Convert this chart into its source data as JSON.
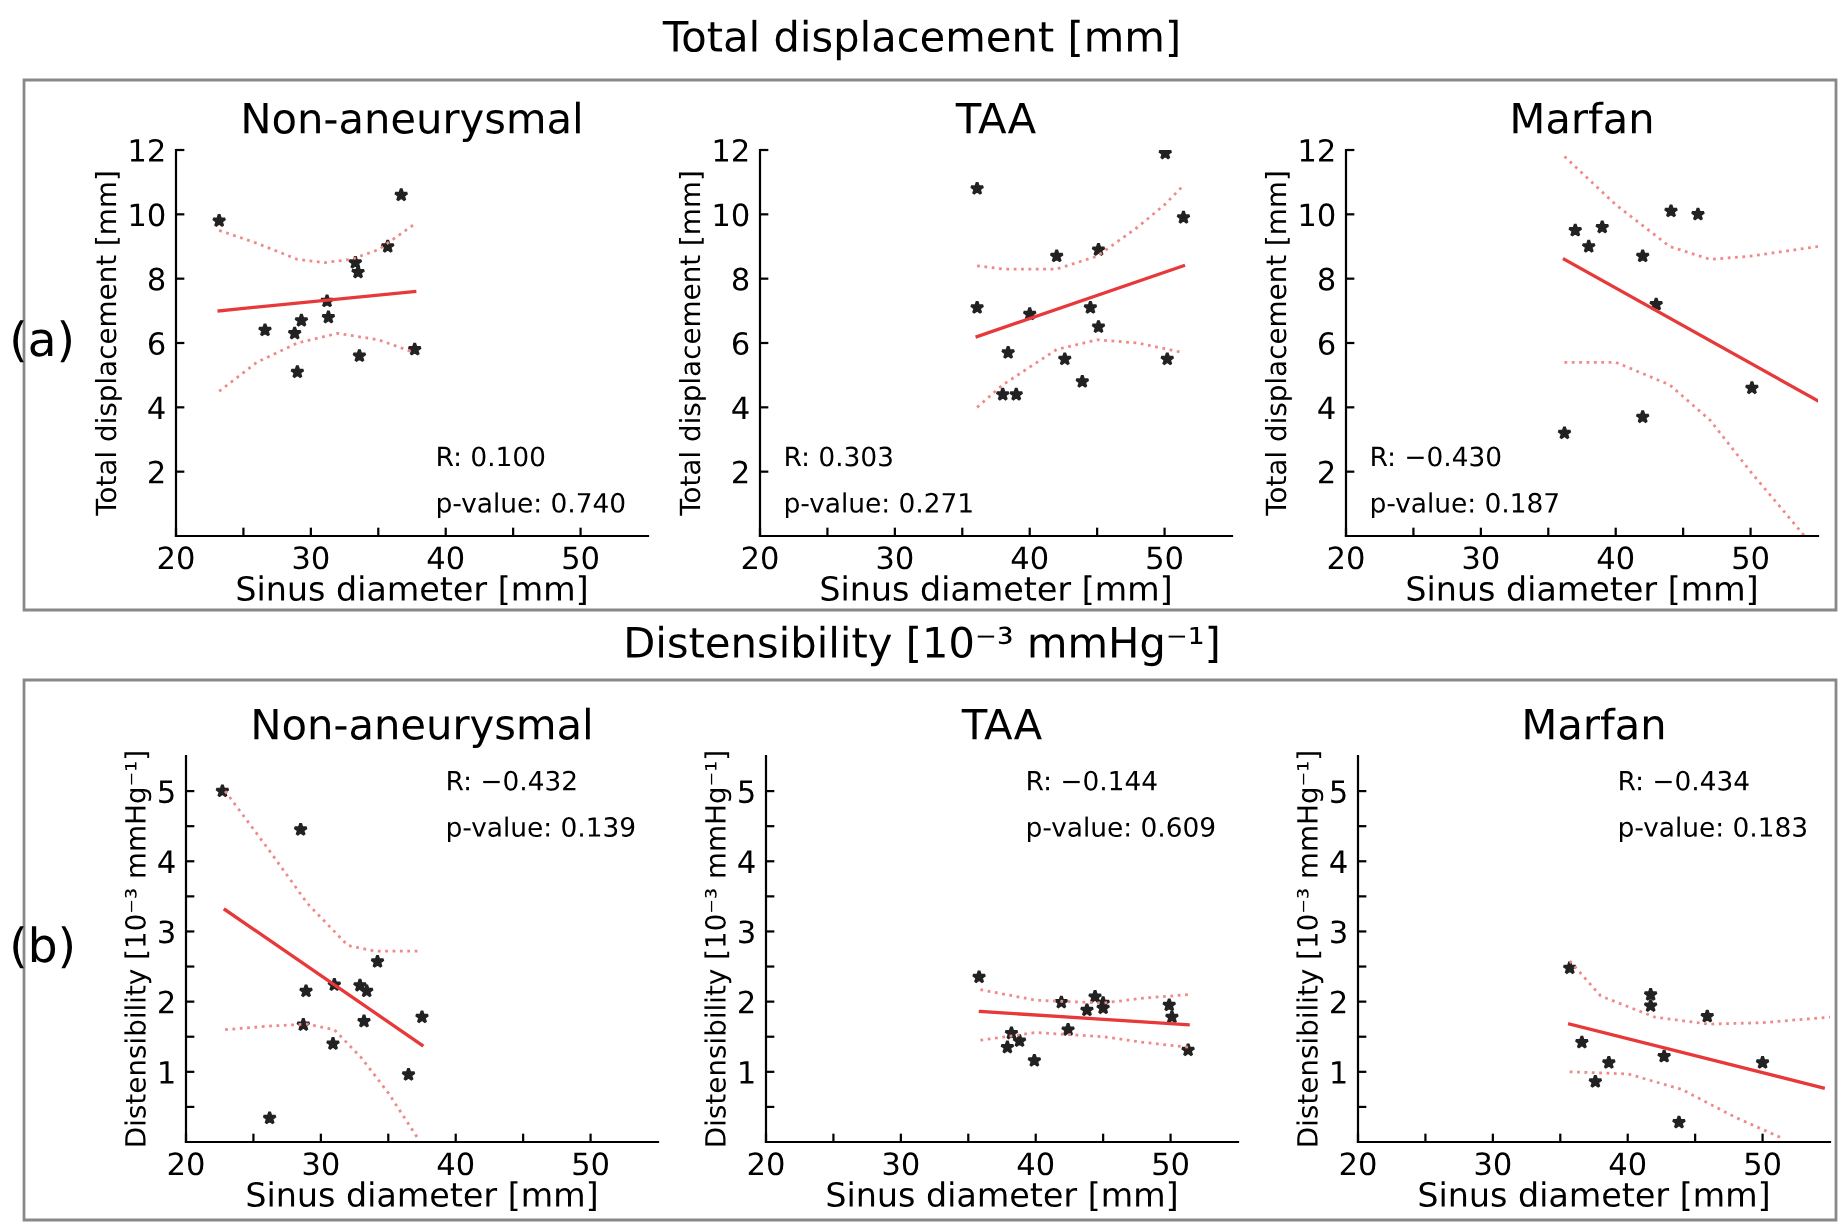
{
  "chart_data": [
    {
      "type": "scatter",
      "title": "Non-aneurysmal",
      "xlabel": "Sinus diameter [mm]",
      "ylabel": "Total displacement [mm]",
      "xlim": [
        20,
        55
      ],
      "xticks": [
        20,
        {
          "value": 25,
          "label": null
        },
        30,
        {
          "value": 35,
          "label": null
        },
        40,
        {
          "value": 45,
          "label": null
        },
        50
      ],
      "ylim": [
        0,
        12
      ],
      "yticks": [
        2,
        4,
        6,
        8,
        10,
        12
      ],
      "grid": false,
      "legend": false,
      "annotations": [
        "R: 0.100",
        "p-value: 0.740",
        "Total displacement [mm]",
        "(a)"
      ],
      "series": [
        {
          "marker": "star",
          "color": "#222222",
          "x": [
            23.2,
            36.7,
            35.7,
            33.3,
            33.5,
            31.2,
            31.3,
            29.3,
            26.6,
            28.8,
            29.0,
            33.6,
            37.7
          ],
          "values": [
            9.8,
            10.6,
            9.0,
            8.5,
            8.2,
            7.3,
            6.8,
            6.7,
            6.4,
            6.3,
            5.1,
            5.6,
            5.8
          ]
        },
        {
          "type": "line",
          "line_style": "solid",
          "color": "#e8393a",
          "x": [
            23.2,
            37.7
          ],
          "values": [
            7.0,
            7.6
          ]
        },
        {
          "type": "line",
          "line_style": "dotted",
          "color": "#f08a8a",
          "x": [
            23.2,
            26,
            29,
            31,
            33,
            35,
            37.7
          ],
          "values": [
            9.5,
            9.1,
            8.6,
            8.5,
            8.6,
            8.9,
            9.7
          ]
        },
        {
          "type": "line",
          "line_style": "dotted",
          "color": "#f08a8a",
          "x": [
            23.2,
            26,
            29,
            32,
            35,
            37.7
          ],
          "values": [
            4.5,
            5.4,
            6.0,
            6.3,
            6.1,
            5.7
          ]
        }
      ]
    },
    {
      "type": "scatter",
      "title": "TAA",
      "xlabel": "Sinus diameter [mm]",
      "ylabel": "Total displacement [mm]",
      "xlim": [
        20,
        55
      ],
      "xticks": [
        20,
        {
          "value": 25,
          "label": null
        },
        30,
        {
          "value": 35,
          "label": null
        },
        40,
        {
          "value": 45,
          "label": null
        },
        50
      ],
      "ylim": [
        0,
        12
      ],
      "yticks": [
        2,
        4,
        6,
        8,
        10,
        12
      ],
      "grid": false,
      "legend": false,
      "annotations": [
        "R: 0.303",
        "p-value: 0.271"
      ],
      "series": [
        {
          "marker": "star",
          "color": "#222222",
          "x": [
            36.1,
            36.1,
            50.05,
            51.4,
            42.0,
            45.1,
            40.0,
            44.5,
            45.1,
            38.4,
            42.6,
            50.2,
            43.9,
            38.0,
            39.0
          ],
          "values": [
            10.8,
            7.1,
            11.9,
            9.9,
            8.7,
            8.9,
            6.9,
            7.1,
            6.5,
            5.7,
            5.5,
            5.5,
            4.8,
            4.4,
            4.4
          ]
        },
        {
          "type": "line",
          "line_style": "solid",
          "color": "#e8393a",
          "x": [
            36.1,
            51.4
          ],
          "values": [
            6.2,
            8.4
          ]
        },
        {
          "type": "line",
          "line_style": "dotted",
          "color": "#f08a8a",
          "x": [
            36.1,
            38,
            42,
            45,
            48,
            50,
            51.4
          ],
          "values": [
            8.4,
            8.3,
            8.3,
            8.7,
            9.6,
            10.3,
            10.9
          ]
        },
        {
          "type": "line",
          "line_style": "dotted",
          "color": "#f08a8a",
          "x": [
            36.1,
            38,
            42,
            45,
            48,
            51.4
          ],
          "values": [
            4.0,
            4.7,
            5.8,
            6.1,
            6.0,
            5.7
          ]
        }
      ]
    },
    {
      "type": "scatter",
      "title": "Marfan",
      "xlabel": "Sinus diameter [mm]",
      "ylabel": "Total displacement [mm]",
      "xlim": [
        20,
        55
      ],
      "xticks": [
        20,
        {
          "value": 25,
          "label": null
        },
        30,
        {
          "value": 35,
          "label": null
        },
        40,
        {
          "value": 45,
          "label": null
        },
        50
      ],
      "ylim": [
        0,
        12
      ],
      "yticks": [
        2,
        4,
        6,
        8,
        10,
        12
      ],
      "grid": false,
      "legend": false,
      "annotations": [
        "R: −0.430",
        "p-value: 0.187"
      ],
      "series": [
        {
          "marker": "star",
          "color": "#222222",
          "x": [
            36.2,
            37.0,
            38.0,
            39.0,
            44.1,
            46.1,
            42.0,
            43.0,
            42.0,
            50.1
          ],
          "values": [
            3.2,
            9.5,
            9.0,
            9.6,
            10.1,
            10.0,
            8.7,
            7.2,
            3.7,
            4.6
          ]
        },
        {
          "type": "line",
          "line_style": "solid",
          "color": "#e8393a",
          "x": [
            36.2,
            55
          ],
          "values": [
            8.6,
            4.2
          ]
        },
        {
          "type": "line",
          "line_style": "dotted",
          "color": "#f08a8a",
          "x": [
            36.2,
            40,
            44,
            47,
            50,
            55
          ],
          "values": [
            11.8,
            10.3,
            9.0,
            8.6,
            8.7,
            9.0
          ]
        },
        {
          "type": "line",
          "line_style": "dotted",
          "color": "#f08a8a",
          "x": [
            36.2,
            40,
            44,
            47,
            50,
            53,
            54
          ],
          "values": [
            5.4,
            5.4,
            4.7,
            3.6,
            2.0,
            0.5,
            0.0
          ]
        }
      ]
    },
    {
      "type": "scatter",
      "title": "Non-aneurysmal",
      "xlabel": "Sinus diameter [mm]",
      "ylabel": "Distensibility [10⁻³ mmHg⁻¹]",
      "xlim": [
        20,
        55
      ],
      "xticks": [
        20,
        {
          "value": 25,
          "label": null
        },
        30,
        {
          "value": 35,
          "label": null
        },
        40,
        {
          "value": 45,
          "label": null
        },
        50
      ],
      "ylim": [
        0,
        5.5
      ],
      "yticks": [
        {
          "value": 0.5,
          "label": null
        },
        1,
        {
          "value": 1.5,
          "label": null
        },
        2,
        {
          "value": 2.5,
          "label": null
        },
        3,
        {
          "value": 3.5,
          "label": null
        },
        4,
        {
          "value": 4.5,
          "label": null
        },
        5
      ],
      "grid": false,
      "legend": false,
      "annotations": [
        "R: −0.432",
        "p-value: 0.139",
        "Distensibility [10⁻³ mmHg⁻¹]",
        "(b)"
      ],
      "series": [
        {
          "marker": "star",
          "color": "#222222",
          "x": [
            22.7,
            28.5,
            28.9,
            31.0,
            32.9,
            33.4,
            34.2,
            28.7,
            33.2,
            30.9,
            37.5,
            36.5,
            26.2
          ],
          "values": [
            5.0,
            4.45,
            2.15,
            2.24,
            2.23,
            2.15,
            2.57,
            1.67,
            1.72,
            1.4,
            1.78,
            0.96,
            0.34
          ]
        },
        {
          "type": "line",
          "line_style": "solid",
          "color": "#e8393a",
          "x": [
            22.9,
            37.5
          ],
          "values": [
            3.31,
            1.38
          ]
        },
        {
          "type": "line",
          "line_style": "dotted",
          "color": "#f08a8a",
          "x": [
            22.9,
            26,
            29,
            32,
            34,
            37.5
          ],
          "values": [
            5.0,
            4.2,
            3.4,
            2.8,
            2.72,
            2.72
          ]
        },
        {
          "type": "line",
          "line_style": "dotted",
          "color": "#f08a8a",
          "x": [
            22.9,
            26,
            29,
            31,
            33,
            35,
            37.2
          ],
          "values": [
            1.6,
            1.65,
            1.68,
            1.6,
            1.2,
            0.7,
            0.05
          ]
        }
      ]
    },
    {
      "type": "scatter",
      "title": "TAA",
      "xlabel": "Sinus diameter [mm]",
      "ylabel": "Distensibility [10⁻³ mmHg⁻¹]",
      "xlim": [
        20,
        55
      ],
      "xticks": [
        20,
        {
          "value": 25,
          "label": null
        },
        30,
        {
          "value": 35,
          "label": null
        },
        40,
        {
          "value": 45,
          "label": null
        },
        50
      ],
      "ylim": [
        0,
        5.5
      ],
      "yticks": [
        {
          "value": 0.5,
          "label": null
        },
        1,
        {
          "value": 1.5,
          "label": null
        },
        2,
        {
          "value": 2.5,
          "label": null
        },
        3,
        {
          "value": 3.5,
          "label": null
        },
        4,
        {
          "value": 4.5,
          "label": null
        },
        5
      ],
      "grid": false,
      "legend": false,
      "annotations": [
        "R: −0.144",
        "p-value: 0.609"
      ],
      "series": [
        {
          "marker": "star",
          "color": "#222222",
          "x": [
            35.8,
            41.9,
            44.4,
            45.0,
            45.0,
            43.8,
            49.9,
            50.1,
            38.2,
            37.9,
            38.8,
            39.9,
            42.4,
            51.3
          ],
          "values": [
            2.35,
            1.99,
            2.07,
            1.98,
            1.91,
            1.88,
            1.95,
            1.78,
            1.55,
            1.35,
            1.44,
            1.16,
            1.6,
            1.31
          ]
        },
        {
          "type": "line",
          "line_style": "solid",
          "color": "#e8393a",
          "x": [
            35.9,
            51.3
          ],
          "values": [
            1.86,
            1.67
          ]
        },
        {
          "type": "line",
          "line_style": "dotted",
          "color": "#f08a8a",
          "x": [
            35.9,
            40,
            45,
            48,
            51.3
          ],
          "values": [
            2.17,
            2.02,
            1.98,
            2.05,
            2.1
          ]
        },
        {
          "type": "line",
          "line_style": "dotted",
          "color": "#f08a8a",
          "x": [
            35.9,
            40,
            45,
            48,
            51.3
          ],
          "values": [
            1.45,
            1.56,
            1.5,
            1.42,
            1.35
          ]
        }
      ]
    },
    {
      "type": "scatter",
      "title": "Marfan",
      "xlabel": "Sinus diameter [mm]",
      "ylabel": "Distensibility [10⁻³ mmHg⁻¹]",
      "xlim": [
        20,
        55
      ],
      "xticks": [
        20,
        {
          "value": 25,
          "label": null
        },
        30,
        {
          "value": 35,
          "label": null
        },
        40,
        {
          "value": 45,
          "label": null
        },
        50
      ],
      "ylim": [
        0,
        5.5
      ],
      "yticks": [
        {
          "value": 0.5,
          "label": null
        },
        1,
        {
          "value": 1.5,
          "label": null
        },
        2,
        {
          "value": 2.5,
          "label": null
        },
        3,
        {
          "value": 3.5,
          "label": null
        },
        4,
        {
          "value": 4.5,
          "label": null
        },
        5
      ],
      "grid": false,
      "legend": false,
      "annotations": [
        "R: −0.434",
        "p-value: 0.183"
      ],
      "series": [
        {
          "marker": "star",
          "color": "#222222",
          "x": [
            35.7,
            41.7,
            41.7,
            45.9,
            36.6,
            38.6,
            42.7,
            37.6,
            50.0,
            43.8
          ],
          "values": [
            2.48,
            2.1,
            1.94,
            1.79,
            1.42,
            1.13,
            1.22,
            0.86,
            1.13,
            0.28
          ]
        },
        {
          "type": "line",
          "line_style": "solid",
          "color": "#e8393a",
          "x": [
            35.7,
            54.5
          ],
          "values": [
            1.68,
            0.77
          ]
        },
        {
          "type": "line",
          "line_style": "dotted",
          "color": "#f08a8a",
          "x": [
            35.7,
            38,
            42,
            46,
            50,
            55
          ],
          "values": [
            2.58,
            2.08,
            1.78,
            1.68,
            1.7,
            1.78
          ]
        },
        {
          "type": "line",
          "line_style": "dotted",
          "color": "#f08a8a",
          "x": [
            35.7,
            40,
            44,
            48,
            51.5
          ],
          "values": [
            1.0,
            0.97,
            0.75,
            0.35,
            0.05
          ]
        }
      ]
    }
  ]
}
